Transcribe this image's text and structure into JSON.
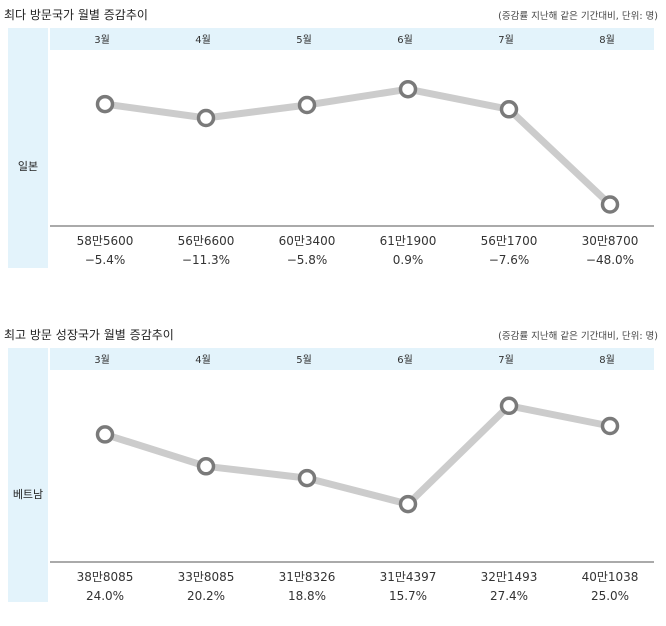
{
  "chart_data": [
    {
      "type": "line",
      "title": "최다 방문국가 월별 증감추이",
      "note": "(증감률 지난해 같은 기간대비, 단위: 명)",
      "row_label": "일본",
      "categories": [
        "3월",
        "4월",
        "5월",
        "6월",
        "7월",
        "8월"
      ],
      "values": [
        -5.4,
        -11.3,
        -5.8,
        0.9,
        -7.6,
        -48.0
      ],
      "counts": [
        "58만5600",
        "56만6600",
        "60만3400",
        "61만1900",
        "56만1700",
        "30만8700"
      ],
      "rates": [
        "−5.4%",
        "−11.3%",
        "−5.8%",
        "0.9%",
        "−7.6%",
        "−48.0%"
      ],
      "ylim": [
        -55,
        15
      ],
      "line_color": "#cccccc",
      "marker_color": "#7a7a7a"
    },
    {
      "type": "line",
      "title": "최고 방문 성장국가 월별 증감추이",
      "note": "(증감률 지난해 같은 기간대비, 단위: 명)",
      "row_label": "베트남",
      "categories": [
        "3월",
        "4월",
        "5월",
        "6월",
        "7월",
        "8월"
      ],
      "values": [
        24.0,
        20.2,
        18.8,
        15.7,
        27.4,
        25.0
      ],
      "counts": [
        "38만8085",
        "33만8085",
        "31만8326",
        "31만4397",
        "32만1493",
        "40만1038"
      ],
      "rates": [
        "24.0%",
        "20.2%",
        "18.8%",
        "15.7%",
        "27.4%",
        "25.0%"
      ],
      "ylim": [
        10,
        30
      ],
      "line_color": "#cccccc",
      "marker_color": "#7a7a7a"
    }
  ]
}
